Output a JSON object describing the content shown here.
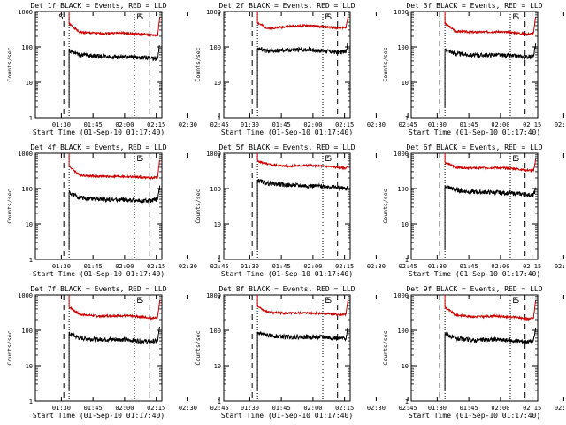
{
  "colors": {
    "events": "#000000",
    "lld": "#cc0000",
    "axes": "#000000",
    "background": "#ffffff"
  },
  "common": {
    "ylabel": "Counts/sec",
    "xlabel": "Start Time (01-Sep-10 01:17:40)",
    "x_tick_labels": [
      "01:30",
      "01:45",
      "02:00",
      "02:15",
      "02:30",
      "02:45"
    ],
    "y_tick_labels": [
      "1",
      "10",
      "100",
      "1000"
    ],
    "markers": {
      "start": "S",
      "end": "E"
    }
  },
  "chart_data": [
    {
      "type": "line",
      "panel": 1,
      "title": "Det 1f BLACK = Events, RED = LLD",
      "xlabel": "Start Time (01-Sep-10 01:17:40)",
      "ylabel": "Counts/sec",
      "y_scale": "log",
      "ylim": [
        1,
        1000
      ],
      "xlim_min_after_start": [
        0,
        60
      ],
      "x": [
        16,
        21,
        30,
        40,
        50,
        55,
        58,
        59
      ],
      "series": [
        {
          "name": "Events",
          "values": [
            80,
            60,
            55,
            52,
            50,
            48,
            45,
            120
          ]
        },
        {
          "name": "LLD",
          "values": [
            450,
            260,
            240,
            250,
            230,
            215,
            210,
            700
          ]
        }
      ],
      "s_marker_min": [
        11,
        49
      ],
      "e_marker_min": [
        48
      ],
      "dashed_min": [
        13.5,
        54,
        63
      ],
      "dotted_min": [
        16,
        47
      ]
    },
    {
      "type": "line",
      "panel": 2,
      "title": "Det 2f BLACK = Events, RED = LLD",
      "xlabel": "Start Time (01-Sep-10 01:17:40)",
      "ylabel": "Counts/sec",
      "y_scale": "log",
      "ylim": [
        1,
        1000
      ],
      "xlim_min_after_start": [
        0,
        60
      ],
      "x": [
        16,
        21,
        30,
        40,
        50,
        55,
        58,
        59
      ],
      "series": [
        {
          "name": "Events",
          "values": [
            90,
            75,
            80,
            85,
            75,
            70,
            75,
            130
          ]
        },
        {
          "name": "LLD",
          "values": [
            480,
            330,
            380,
            400,
            360,
            340,
            360,
            750
          ]
        }
      ],
      "s_marker_min": [
        49
      ],
      "e_marker_min": [
        48
      ],
      "dashed_min": [
        13.5,
        54,
        63
      ],
      "dotted_min": [
        16,
        47
      ]
    },
    {
      "type": "line",
      "panel": 3,
      "title": "Det 3f BLACK = Events, RED = LLD",
      "xlabel": "Start Time (01-Sep-10 01:17:40)",
      "ylabel": "Counts/sec",
      "y_scale": "log",
      "ylim": [
        1,
        1000
      ],
      "xlim_min_after_start": [
        0,
        60
      ],
      "x": [
        16,
        21,
        30,
        40,
        50,
        55,
        58,
        59
      ],
      "series": [
        {
          "name": "Events",
          "values": [
            85,
            65,
            58,
            60,
            55,
            52,
            55,
            110
          ]
        },
        {
          "name": "LLD",
          "values": [
            460,
            280,
            260,
            270,
            250,
            230,
            240,
            720
          ]
        }
      ],
      "s_marker_min": [
        49
      ],
      "e_marker_min": [
        48
      ],
      "dashed_min": [
        13.5,
        54,
        63
      ],
      "dotted_min": [
        16,
        47
      ]
    },
    {
      "type": "line",
      "panel": 4,
      "title": "Det 4f BLACK = Events, RED = LLD",
      "xlabel": "Start Time (01-Sep-10 01:17:40)",
      "ylabel": "Counts/sec",
      "y_scale": "log",
      "ylim": [
        1,
        1000
      ],
      "xlim_min_after_start": [
        0,
        60
      ],
      "x": [
        16,
        21,
        30,
        40,
        50,
        55,
        58,
        59
      ],
      "series": [
        {
          "name": "Events",
          "values": [
            75,
            55,
            50,
            48,
            45,
            45,
            50,
            110
          ]
        },
        {
          "name": "LLD",
          "values": [
            430,
            240,
            220,
            220,
            210,
            200,
            210,
            680
          ]
        }
      ],
      "s_marker_min": [
        49
      ],
      "e_marker_min": [
        48
      ],
      "dashed_min": [
        13.5,
        54,
        63
      ],
      "dotted_min": [
        16,
        47
      ]
    },
    {
      "type": "line",
      "panel": 5,
      "title": "Det 5f BLACK = Events, RED = LLD",
      "xlabel": "Start Time (01-Sep-10 01:17:40)",
      "ylabel": "Counts/sec",
      "y_scale": "log",
      "ylim": [
        1,
        1000
      ],
      "xlim_min_after_start": [
        0,
        60
      ],
      "x": [
        16,
        21,
        30,
        40,
        50,
        55,
        58,
        59
      ],
      "series": [
        {
          "name": "Events",
          "values": [
            170,
            140,
            125,
            120,
            115,
            105,
            100,
            110
          ]
        },
        {
          "name": "LLD",
          "values": [
            600,
            480,
            430,
            450,
            420,
            390,
            380,
            420
          ]
        }
      ],
      "s_marker_min": [
        49
      ],
      "e_marker_min": [
        48
      ],
      "dashed_min": [
        13.5,
        54,
        63
      ],
      "dotted_min": [
        16,
        47
      ]
    },
    {
      "type": "line",
      "panel": 6,
      "title": "Det 6f BLACK = Events, RED = LLD",
      "xlabel": "Start Time (01-Sep-10 01:17:40)",
      "ylabel": "Counts/sec",
      "y_scale": "log",
      "ylim": [
        1,
        1000
      ],
      "xlim_min_after_start": [
        0,
        60
      ],
      "x": [
        16,
        21,
        30,
        40,
        50,
        55,
        58,
        59
      ],
      "series": [
        {
          "name": "Events",
          "values": [
            120,
            90,
            80,
            78,
            72,
            68,
            65,
            100
          ]
        },
        {
          "name": "LLD",
          "values": [
            550,
            400,
            380,
            390,
            360,
            330,
            320,
            640
          ]
        }
      ],
      "s_marker_min": [
        49
      ],
      "e_marker_min": [
        48
      ],
      "dashed_min": [
        13.5,
        54,
        63
      ],
      "dotted_min": [
        16,
        47
      ]
    },
    {
      "type": "line",
      "panel": 7,
      "title": "Det 7f BLACK = Events, RED = LLD",
      "xlabel": "Start Time (01-Sep-10 01:17:40)",
      "ylabel": "Counts/sec",
      "y_scale": "log",
      "ylim": [
        1,
        1000
      ],
      "xlim_min_after_start": [
        0,
        60
      ],
      "x": [
        16,
        21,
        30,
        40,
        50,
        55,
        58,
        59
      ],
      "series": [
        {
          "name": "Events",
          "values": [
            80,
            60,
            55,
            55,
            50,
            48,
            50,
            120
          ]
        },
        {
          "name": "LLD",
          "values": [
            460,
            280,
            250,
            260,
            240,
            220,
            230,
            700
          ]
        }
      ],
      "s_marker_min": [
        49
      ],
      "e_marker_min": [
        48
      ],
      "dashed_min": [
        13.5,
        54,
        63
      ],
      "dotted_min": [
        16,
        47
      ]
    },
    {
      "type": "line",
      "panel": 8,
      "title": "Det 8f BLACK = Events, RED = LLD",
      "xlabel": "Start Time (01-Sep-10 01:17:40)",
      "ylabel": "Counts/sec",
      "y_scale": "log",
      "ylim": [
        1,
        1000
      ],
      "xlim_min_after_start": [
        0,
        60
      ],
      "x": [
        16,
        21,
        30,
        40,
        50,
        55,
        58,
        59
      ],
      "series": [
        {
          "name": "Events",
          "values": [
            85,
            70,
            65,
            65,
            62,
            58,
            60,
            125
          ]
        },
        {
          "name": "LLD",
          "values": [
            470,
            320,
            300,
            310,
            290,
            270,
            280,
            720
          ]
        }
      ],
      "s_marker_min": [
        49
      ],
      "e_marker_min": [
        48
      ],
      "dashed_min": [
        13.5,
        54,
        63
      ],
      "dotted_min": [
        16,
        47
      ]
    },
    {
      "type": "line",
      "panel": 9,
      "title": "Det 9f BLACK = Events, RED = LLD",
      "xlabel": "Start Time (01-Sep-10 01:17:40)",
      "ylabel": "Counts/sec",
      "y_scale": "log",
      "ylim": [
        1,
        1000
      ],
      "xlim_min_after_start": [
        0,
        60
      ],
      "x": [
        16,
        21,
        30,
        40,
        50,
        55,
        58,
        59
      ],
      "series": [
        {
          "name": "Events",
          "values": [
            80,
            58,
            52,
            55,
            50,
            48,
            50,
            110
          ]
        },
        {
          "name": "LLD",
          "values": [
            450,
            270,
            240,
            250,
            230,
            210,
            220,
            690
          ]
        }
      ],
      "s_marker_min": [
        49
      ],
      "e_marker_min": [
        48
      ],
      "dashed_min": [
        13.5,
        54,
        63
      ],
      "dotted_min": [
        16,
        47
      ]
    }
  ]
}
